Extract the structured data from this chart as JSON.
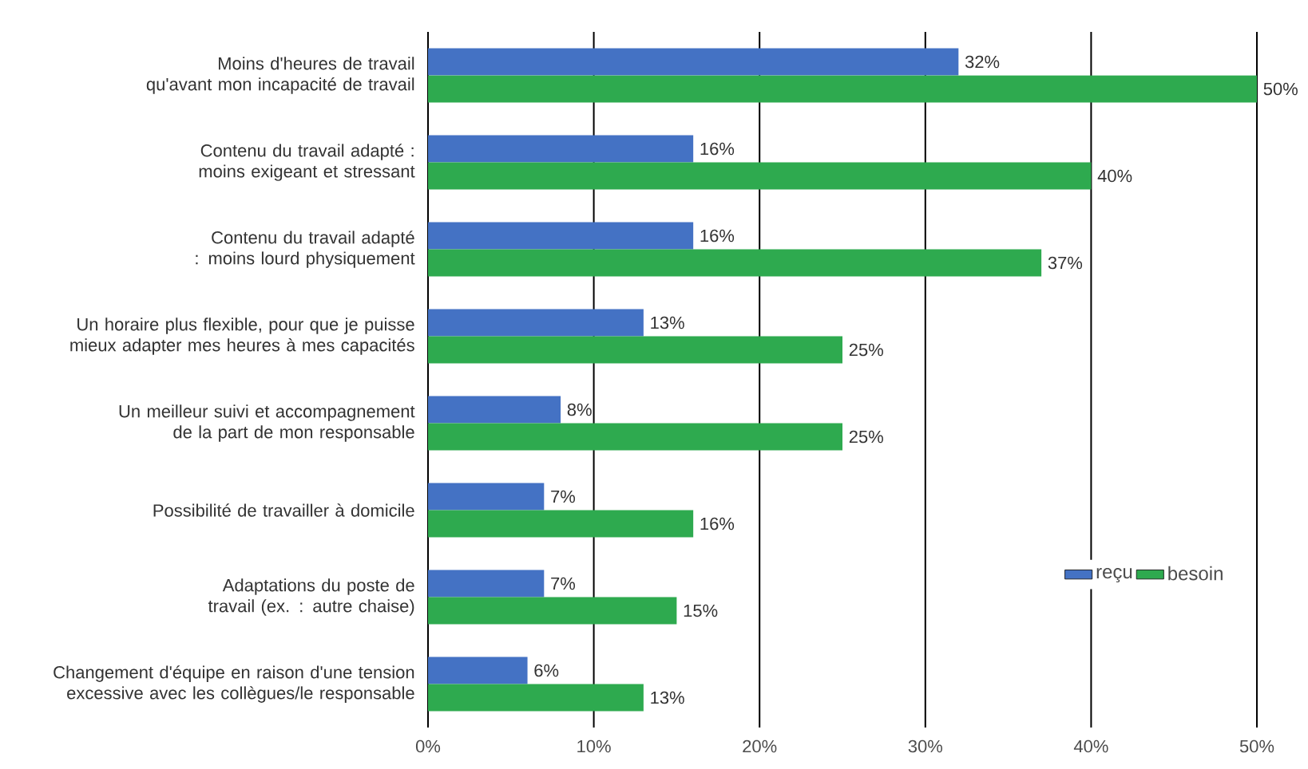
{
  "chart_data": {
    "type": "bar",
    "orientation": "horizontal",
    "categories": [
      "Moins d'heures de travail qu'avant mon incapacité de travail",
      "Contenu du travail adapté : moins exigeant et stressant",
      "Contenu du travail adapté : moins lourd physiquement",
      "Un horaire plus flexible, pour que je puisse mieux adapter mes heures à mes capacités",
      "Un meilleur suivi et accompagnement de la part de mon responsable",
      "Possibilité de travailler à domicile",
      "Adaptations du poste de travail (ex. : autre chaise)",
      "Changement d'équipe en raison d'une tension excessive avec les collègues/le responsable"
    ],
    "series": [
      {
        "name": "reçu",
        "color": "#4472c4",
        "values": [
          32,
          16,
          16,
          13,
          8,
          7,
          7,
          6
        ],
        "value_labels": [
          "32%",
          "16%",
          "16%",
          "13%",
          "8%",
          "7%",
          "7%",
          "6%"
        ]
      },
      {
        "name": "besoin",
        "color": "#2eaa4f",
        "values": [
          50,
          40,
          37,
          25,
          25,
          16,
          15,
          13
        ],
        "value_labels": [
          "50%",
          "40%",
          "37%",
          "25%",
          "25%",
          "16%",
          "15%",
          "13%"
        ]
      }
    ],
    "xlim": [
      0,
      50
    ],
    "xticks": [
      {
        "value": 0,
        "label": "0%"
      },
      {
        "value": 10,
        "label": "10%"
      },
      {
        "value": 20,
        "label": "20%"
      },
      {
        "value": 30,
        "label": "30%"
      },
      {
        "value": 40,
        "label": "40%"
      },
      {
        "value": 50,
        "label": "50%"
      }
    ],
    "grid": "x",
    "legend": "bottom right"
  }
}
